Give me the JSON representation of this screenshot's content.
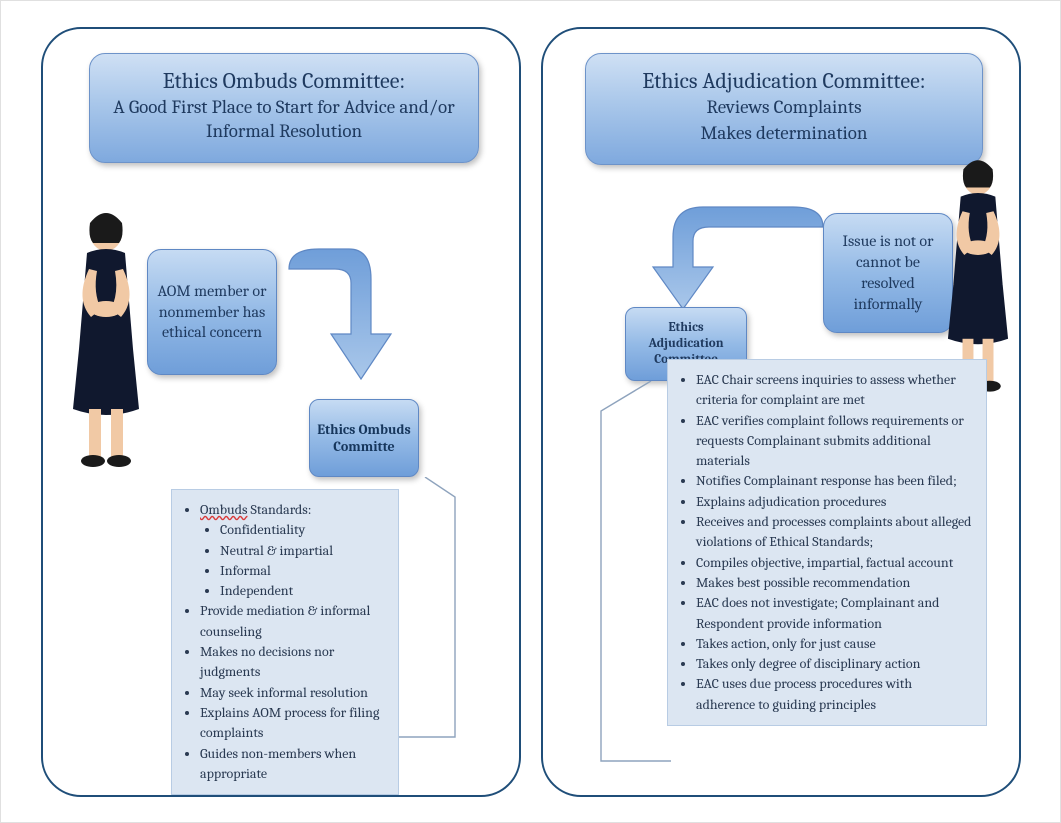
{
  "colors": {
    "panel_border": "#1f4e79",
    "gradient_top": "#cfe0f4",
    "gradient_bottom": "#7fa9de",
    "text_dark": "#1f3a5f",
    "detail_bg": "#dce6f2",
    "detail_border": "#b8cce4",
    "arrow_fill": "#8fb4e3",
    "arrow_stroke": "#5f88c4",
    "person_dress": "#10182e",
    "person_skin": "#f1c9a5"
  },
  "left": {
    "header_title": "Ethics Ombuds Committee:",
    "header_sub": "A Good First Place to Start for Advice and/or Informal Resolution",
    "start_box": "AOM member or nonmember has ethical concern",
    "node_label": "Ethics Ombuds Committe",
    "details_lead_word": "Ombuds",
    "details_lead_rest": " Standards:",
    "standards": [
      "Confidentiality",
      "Neutral & impartial",
      "Informal",
      "Independent"
    ],
    "bullets": [
      "Provide mediation & informal counseling",
      "Makes no decisions nor judgments",
      "May seek informal resolution",
      "Explains AOM process for filing complaints",
      "Guides non-members when appropriate"
    ]
  },
  "right": {
    "header_title": "Ethics Adjudication Committee:",
    "header_sub1": "Reviews Complaints",
    "header_sub2": "Makes determination",
    "issue_box": "Issue is not or cannot be resolved informally",
    "node_label": "Ethics Adjudication Committee",
    "bullets": [
      "EAC Chair screens inquiries to assess whether criteria for complaint are met",
      "EAC verifies complaint follows requirements or requests Complainant submits additional materials",
      "Notifies Complainant response has been filed;",
      "Explains adjudication procedures",
      "Receives and processes complaints about alleged violations of Ethical Standards;",
      "Compiles objective, impartial, factual account",
      "Makes best possible recommendation",
      "EAC does not investigate; Complainant and Respondent provide information",
      "Takes action, only for just cause",
      "Takes only degree of disciplinary action",
      "EAC uses due process procedures with adherence to guiding principles"
    ]
  },
  "styling": {
    "header_title_fontsize": 22,
    "header_sub_fontsize": 19,
    "small_box_fontsize": 16,
    "detail_fontsize": 14,
    "panel_radius": 40,
    "box_radius": 16
  }
}
